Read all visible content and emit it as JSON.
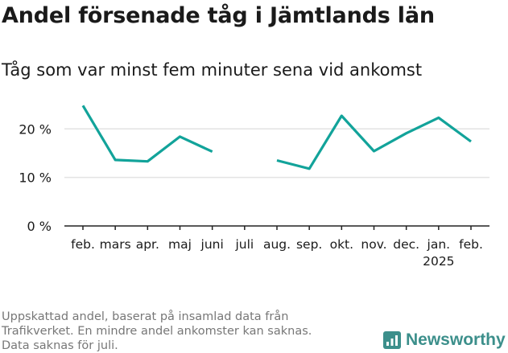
{
  "title": "Andel försenade tåg i Jämtlands län",
  "subtitle": "Tåg som var minst fem minuter sena vid ankomst",
  "footnote": [
    "Uppskattad andel, baserat på insamlad data från",
    "Trafikverket. En mindre andel ankomster kan saknas.",
    "Data saknas för juli."
  ],
  "brand": {
    "name": "Newsworthy",
    "icon": "newsworthy-logo-icon"
  },
  "colors": {
    "line": "#12a39a",
    "grid": "#e3e3e3",
    "axis": "#222222",
    "brand": "#3c8f8b"
  },
  "chart_data": {
    "type": "line",
    "categories": [
      "feb.",
      "mars",
      "apr.",
      "maj",
      "juni",
      "juli",
      "aug.",
      "sep.",
      "okt.",
      "nov.",
      "dec.",
      "jan.",
      "feb."
    ],
    "tick_sublabels": [
      "",
      "",
      "",
      "",
      "",
      "",
      "",
      "",
      "",
      "",
      "",
      "2025",
      ""
    ],
    "series": [
      {
        "values": [
          24.8,
          13.6,
          13.3,
          18.4,
          15.3,
          null,
          13.5,
          11.8,
          22.7,
          15.4,
          19.1,
          22.3,
          17.4
        ]
      }
    ],
    "y_ticks": [
      0,
      10,
      20
    ],
    "y_tick_labels": [
      "0 %",
      "10 %",
      "20 %"
    ],
    "ylim": [
      0,
      27
    ],
    "grid": true,
    "xlabel": "",
    "ylabel": ""
  }
}
